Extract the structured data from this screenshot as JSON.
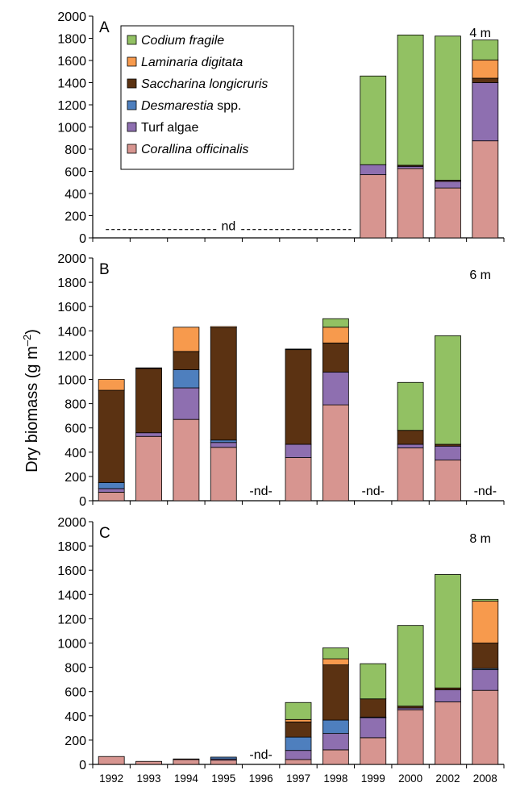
{
  "chart_data": {
    "type": "bar",
    "stacked": true,
    "ylabel_main": "Dry biomass (g m",
    "ylabel_sup": "–2",
    "ylabel_close": ")",
    "ylim": [
      0,
      2000
    ],
    "yticks": [
      0,
      200,
      400,
      600,
      800,
      1000,
      1200,
      1400,
      1600,
      1800,
      2000
    ],
    "categories": [
      "1992",
      "1993",
      "1994",
      "1995",
      "1996",
      "1997",
      "1998",
      "1999",
      "2000",
      "2002",
      "2008"
    ],
    "colors": {
      "Corallina officinalis": "#d79590",
      "Turf algae": "#8e6fb0",
      "Desmarestia spp.": "#4e7fbe",
      "Saccharina longicruris": "#5b3212",
      "Laminaria digitata": "#f79a4d",
      "Codium fragile": "#92c163"
    },
    "legend": [
      {
        "key": "Codium fragile",
        "text": "Codium fragile",
        "extra": ""
      },
      {
        "key": "Laminaria digitata",
        "text": "Laminaria digitata",
        "extra": ""
      },
      {
        "key": "Saccharina longicruris",
        "text": "Saccharina longicruris",
        "extra": ""
      },
      {
        "key": "Desmarestia spp.",
        "text": "Desmarestia",
        "extra": " spp."
      },
      {
        "key": "Turf algae",
        "text": "",
        "extra": "Turf algae"
      },
      {
        "key": "Corallina officinalis",
        "text": "Corallina officinalis",
        "extra": ""
      }
    ],
    "legend_placement": "top-left of panel A",
    "panels": [
      {
        "letter": "A",
        "depth": "4 m",
        "nd_line": {
          "label": "nd",
          "from": "1992",
          "to": "1998"
        },
        "nd_marks": [],
        "series": [
          {
            "name": "Corallina officinalis",
            "values": [
              null,
              null,
              null,
              null,
              null,
              null,
              null,
              570,
              625,
              450,
              875
            ]
          },
          {
            "name": "Turf algae",
            "values": [
              null,
              null,
              null,
              null,
              null,
              null,
              null,
              90,
              20,
              60,
              525
            ]
          },
          {
            "name": "Desmarestia spp.",
            "values": [
              null,
              null,
              null,
              null,
              null,
              null,
              null,
              0,
              0,
              0,
              0
            ]
          },
          {
            "name": "Saccharina longicruris",
            "values": [
              null,
              null,
              null,
              null,
              null,
              null,
              null,
              0,
              10,
              10,
              40
            ]
          },
          {
            "name": "Laminaria digitata",
            "values": [
              null,
              null,
              null,
              null,
              null,
              null,
              null,
              0,
              0,
              0,
              165
            ]
          },
          {
            "name": "Codium fragile",
            "values": [
              null,
              null,
              null,
              null,
              null,
              null,
              null,
              800,
              1175,
              1300,
              180
            ]
          }
        ]
      },
      {
        "letter": "B",
        "depth": "6 m",
        "nd_line": null,
        "nd_marks": [
          {
            "year": "1996",
            "label": "-nd-"
          },
          {
            "year": "1999",
            "label": "-nd-"
          },
          {
            "year": "2008",
            "label": "-nd-"
          }
        ],
        "series": [
          {
            "name": "Corallina officinalis",
            "values": [
              70,
              530,
              670,
              440,
              null,
              355,
              790,
              null,
              435,
              335,
              null
            ]
          },
          {
            "name": "Turf algae",
            "values": [
              30,
              30,
              260,
              40,
              null,
              110,
              270,
              null,
              30,
              115,
              null
            ]
          },
          {
            "name": "Desmarestia spp.",
            "values": [
              50,
              0,
              150,
              20,
              null,
              0,
              0,
              null,
              0,
              0,
              null
            ]
          },
          {
            "name": "Saccharina longicruris",
            "values": [
              760,
              530,
              150,
              925,
              null,
              780,
              240,
              null,
              115,
              15,
              null
            ]
          },
          {
            "name": "Laminaria digitata",
            "values": [
              90,
              5,
              200,
              10,
              null,
              5,
              130,
              null,
              0,
              0,
              null
            ]
          },
          {
            "name": "Codium fragile",
            "values": [
              0,
              0,
              0,
              0,
              null,
              0,
              70,
              null,
              395,
              895,
              null
            ]
          }
        ]
      },
      {
        "letter": "C",
        "depth": "8 m",
        "nd_line": null,
        "nd_marks": [
          {
            "year": "1996",
            "label": "-nd-"
          }
        ],
        "series": [
          {
            "name": "Corallina officinalis",
            "values": [
              65,
              25,
              40,
              35,
              null,
              40,
              120,
              220,
              450,
              515,
              610
            ]
          },
          {
            "name": "Turf algae",
            "values": [
              0,
              0,
              5,
              10,
              null,
              75,
              135,
              165,
              15,
              100,
              170
            ]
          },
          {
            "name": "Desmarestia spp.",
            "values": [
              0,
              0,
              0,
              15,
              null,
              110,
              110,
              5,
              0,
              0,
              10
            ]
          },
          {
            "name": "Saccharina longicruris",
            "values": [
              0,
              0,
              0,
              0,
              null,
              125,
              455,
              150,
              15,
              15,
              210
            ]
          },
          {
            "name": "Laminaria digitata",
            "values": [
              0,
              0,
              0,
              0,
              null,
              20,
              50,
              0,
              0,
              0,
              345
            ]
          },
          {
            "name": "Codium fragile",
            "values": [
              0,
              0,
              0,
              0,
              null,
              140,
              90,
              290,
              665,
              935,
              15
            ]
          }
        ]
      }
    ]
  }
}
